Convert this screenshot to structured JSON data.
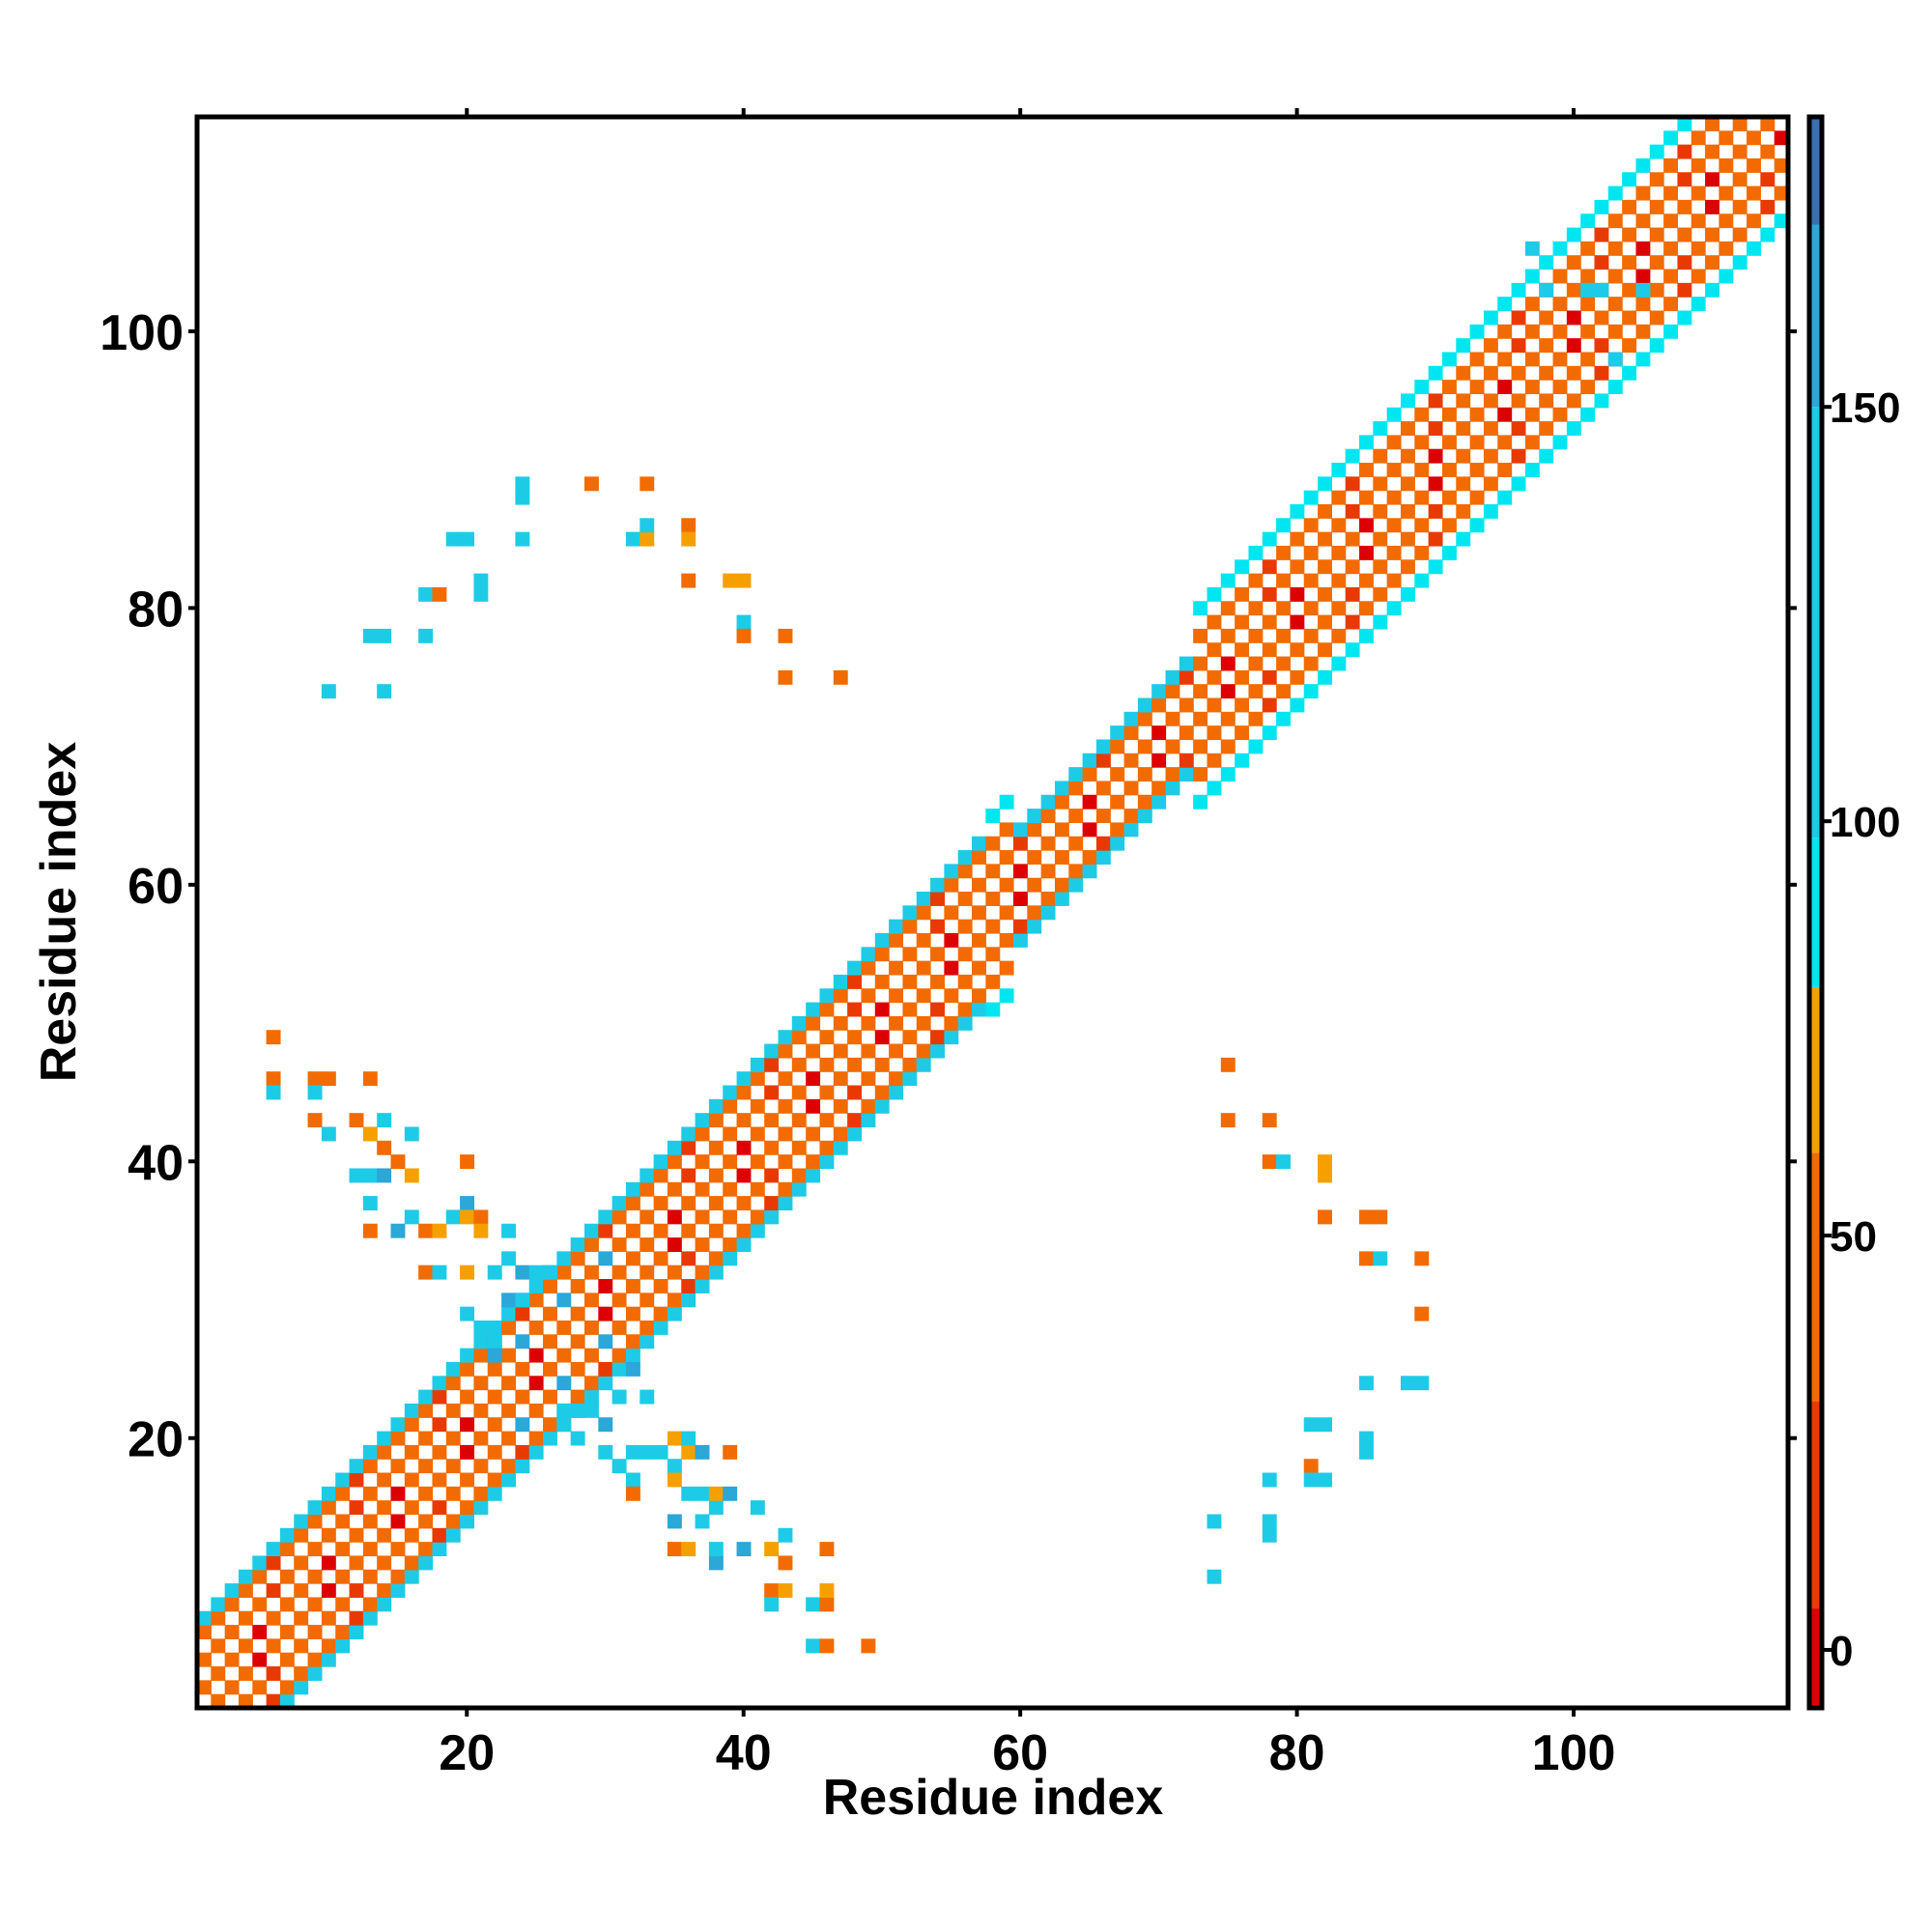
{
  "chart_data": {
    "type": "heatmap",
    "title": "",
    "xlabel": "Residue index",
    "ylabel": "Residue index",
    "xlim": [
      0.5,
      115.5
    ],
    "ylim": [
      0.5,
      115.5
    ],
    "xticks": [
      20,
      40,
      60,
      80,
      100
    ],
    "yticks": [
      20,
      40,
      60,
      80,
      100
    ],
    "grid": false,
    "colorbar": {
      "range": [
        -7,
        185
      ],
      "ticks": [
        0,
        50,
        100,
        150
      ],
      "bands": [
        {
          "from": -7,
          "to": 5,
          "color": "#dd0000"
        },
        {
          "from": 5,
          "to": 30,
          "color": "#e83a00"
        },
        {
          "from": 30,
          "to": 60,
          "color": "#f26b00"
        },
        {
          "from": 60,
          "to": 80,
          "color": "#f6a000"
        },
        {
          "from": 80,
          "to": 98,
          "color": "#00e6f0"
        },
        {
          "from": 98,
          "to": 150,
          "color": "#1ecbe6"
        },
        {
          "from": 150,
          "to": 172,
          "color": "#2ba7d8"
        },
        {
          "from": 172,
          "to": 185,
          "color": "#3a6fb0"
        }
      ]
    },
    "diagonal_band": {
      "halfwidth_low": 6,
      "halfwidth_high": 7,
      "helix_region": [
        60,
        72
      ],
      "helix_halfwidth": 4
    },
    "offdiag_contacts": [
      [
        6,
        49,
        "o"
      ],
      [
        6,
        46,
        "o"
      ],
      [
        6,
        45,
        "c"
      ],
      [
        9,
        46,
        "o"
      ],
      [
        10,
        46,
        "o"
      ],
      [
        9,
        45,
        "c"
      ],
      [
        13,
        46,
        "o"
      ],
      [
        9,
        43,
        "o"
      ],
      [
        10,
        42,
        "c"
      ],
      [
        12,
        43,
        "o"
      ],
      [
        13,
        42,
        "y"
      ],
      [
        14,
        43,
        "c"
      ],
      [
        14,
        41,
        "o"
      ],
      [
        16,
        42,
        "c"
      ],
      [
        12,
        39,
        "c"
      ],
      [
        13,
        39,
        "c"
      ],
      [
        14,
        39,
        "b"
      ],
      [
        15,
        40,
        "o"
      ],
      [
        16,
        39,
        "y"
      ],
      [
        20,
        40,
        "o"
      ],
      [
        13,
        37,
        "c"
      ],
      [
        13,
        35,
        "o"
      ],
      [
        15,
        35,
        "b"
      ],
      [
        16,
        36,
        "c"
      ],
      [
        17,
        35,
        "o"
      ],
      [
        18,
        35,
        "y"
      ],
      [
        19,
        36,
        "c"
      ],
      [
        20,
        37,
        "b"
      ],
      [
        20,
        36,
        "y"
      ],
      [
        21,
        36,
        "o"
      ],
      [
        21,
        35,
        "y"
      ],
      [
        23,
        35,
        "c"
      ],
      [
        17,
        32,
        "o"
      ],
      [
        18,
        32,
        "c"
      ],
      [
        20,
        32,
        "y"
      ],
      [
        22,
        32,
        "c"
      ],
      [
        23,
        33,
        "c"
      ],
      [
        24,
        32,
        "b"
      ],
      [
        25,
        32,
        "c"
      ],
      [
        26,
        32,
        "c"
      ],
      [
        20,
        29,
        "c"
      ],
      [
        21,
        28,
        "c"
      ],
      [
        22,
        27,
        "c"
      ],
      [
        22,
        26,
        "b"
      ],
      [
        23,
        30,
        "b"
      ],
      [
        24,
        30,
        "c"
      ],
      [
        27,
        22,
        "c"
      ],
      [
        27,
        21,
        "c"
      ],
      [
        28,
        22,
        "c"
      ],
      [
        28,
        20,
        "c"
      ],
      [
        29,
        22,
        "c"
      ],
      [
        30,
        21,
        "b"
      ],
      [
        31,
        23,
        "c"
      ],
      [
        32,
        25,
        "b"
      ],
      [
        33,
        23,
        "c"
      ],
      [
        30,
        19,
        "c"
      ],
      [
        31,
        18,
        "c"
      ],
      [
        32,
        19,
        "c"
      ],
      [
        33,
        19,
        "c"
      ],
      [
        34,
        19,
        "c"
      ],
      [
        35,
        20,
        "y"
      ],
      [
        36,
        19,
        "y"
      ],
      [
        35,
        18,
        "c"
      ],
      [
        36,
        20,
        "c"
      ],
      [
        37,
        19,
        "b"
      ],
      [
        39,
        19,
        "o"
      ],
      [
        32,
        17,
        "c"
      ],
      [
        32,
        16,
        "o"
      ],
      [
        35,
        17,
        "y"
      ],
      [
        36,
        16,
        "c"
      ],
      [
        37,
        16,
        "c"
      ],
      [
        38,
        15,
        "c"
      ],
      [
        38,
        16,
        "y"
      ],
      [
        39,
        16,
        "b"
      ],
      [
        35,
        14,
        "b"
      ],
      [
        37,
        14,
        "c"
      ],
      [
        35,
        12,
        "o"
      ],
      [
        36,
        12,
        "y"
      ],
      [
        38,
        11,
        "b"
      ],
      [
        38,
        12,
        "c"
      ],
      [
        40,
        12,
        "b"
      ],
      [
        41,
        15,
        "c"
      ],
      [
        42,
        12,
        "y"
      ],
      [
        43,
        13,
        "c"
      ],
      [
        43,
        11,
        "o"
      ],
      [
        46,
        12,
        "o"
      ],
      [
        42,
        9,
        "o"
      ],
      [
        42,
        8,
        "c"
      ],
      [
        43,
        9,
        "y"
      ],
      [
        45,
        8,
        "c"
      ],
      [
        46,
        8,
        "o"
      ],
      [
        46,
        9,
        "y"
      ],
      [
        45,
        5,
        "c"
      ],
      [
        46,
        5,
        "o"
      ],
      [
        49,
        5,
        "o"
      ],
      [
        10,
        74,
        "c"
      ],
      [
        14,
        74,
        "c"
      ],
      [
        13,
        78,
        "c"
      ],
      [
        14,
        78,
        "c"
      ],
      [
        17,
        78,
        "c"
      ],
      [
        17,
        81,
        "c"
      ],
      [
        18,
        81,
        "o"
      ],
      [
        21,
        82,
        "c"
      ],
      [
        21,
        81,
        "c"
      ],
      [
        19,
        85,
        "c"
      ],
      [
        20,
        85,
        "c"
      ],
      [
        24,
        85,
        "c"
      ],
      [
        24,
        89,
        "c"
      ],
      [
        24,
        88,
        "c"
      ],
      [
        29,
        89,
        "o"
      ],
      [
        33,
        89,
        "o"
      ],
      [
        32,
        85,
        "c"
      ],
      [
        33,
        85,
        "y"
      ],
      [
        33,
        86,
        "c"
      ],
      [
        36,
        86,
        "o"
      ],
      [
        36,
        85,
        "y"
      ],
      [
        36,
        82,
        "o"
      ],
      [
        39,
        82,
        "y"
      ],
      [
        40,
        82,
        "y"
      ],
      [
        40,
        79,
        "c"
      ],
      [
        40,
        78,
        "o"
      ],
      [
        43,
        78,
        "o"
      ],
      [
        43,
        75,
        "o"
      ],
      [
        47,
        75,
        "o"
      ],
      [
        75,
        47,
        "o"
      ],
      [
        75,
        43,
        "o"
      ],
      [
        78,
        43,
        "o"
      ],
      [
        78,
        40,
        "o"
      ],
      [
        79,
        40,
        "c"
      ],
      [
        82,
        40,
        "y"
      ],
      [
        82,
        39,
        "y"
      ],
      [
        82,
        36,
        "o"
      ],
      [
        85,
        36,
        "o"
      ],
      [
        86,
        36,
        "o"
      ],
      [
        85,
        33,
        "o"
      ],
      [
        86,
        33,
        "c"
      ],
      [
        89,
        33,
        "o"
      ],
      [
        89,
        29,
        "o"
      ],
      [
        74,
        10,
        "c"
      ],
      [
        74,
        14,
        "c"
      ],
      [
        78,
        14,
        "c"
      ],
      [
        78,
        13,
        "c"
      ],
      [
        78,
        17,
        "c"
      ],
      [
        81,
        18,
        "o"
      ],
      [
        81,
        17,
        "c"
      ],
      [
        82,
        17,
        "c"
      ],
      [
        81,
        21,
        "c"
      ],
      [
        82,
        21,
        "c"
      ],
      [
        85,
        20,
        "c"
      ],
      [
        85,
        19,
        "c"
      ],
      [
        85,
        24,
        "c"
      ],
      [
        88,
        24,
        "c"
      ],
      [
        89,
        24,
        "c"
      ],
      [
        97,
        106,
        "c"
      ],
      [
        98,
        103,
        "c"
      ],
      [
        101,
        103,
        "c"
      ],
      [
        102,
        103,
        "c"
      ],
      [
        105,
        103,
        "c"
      ],
      [
        103,
        98,
        "c"
      ]
    ]
  }
}
